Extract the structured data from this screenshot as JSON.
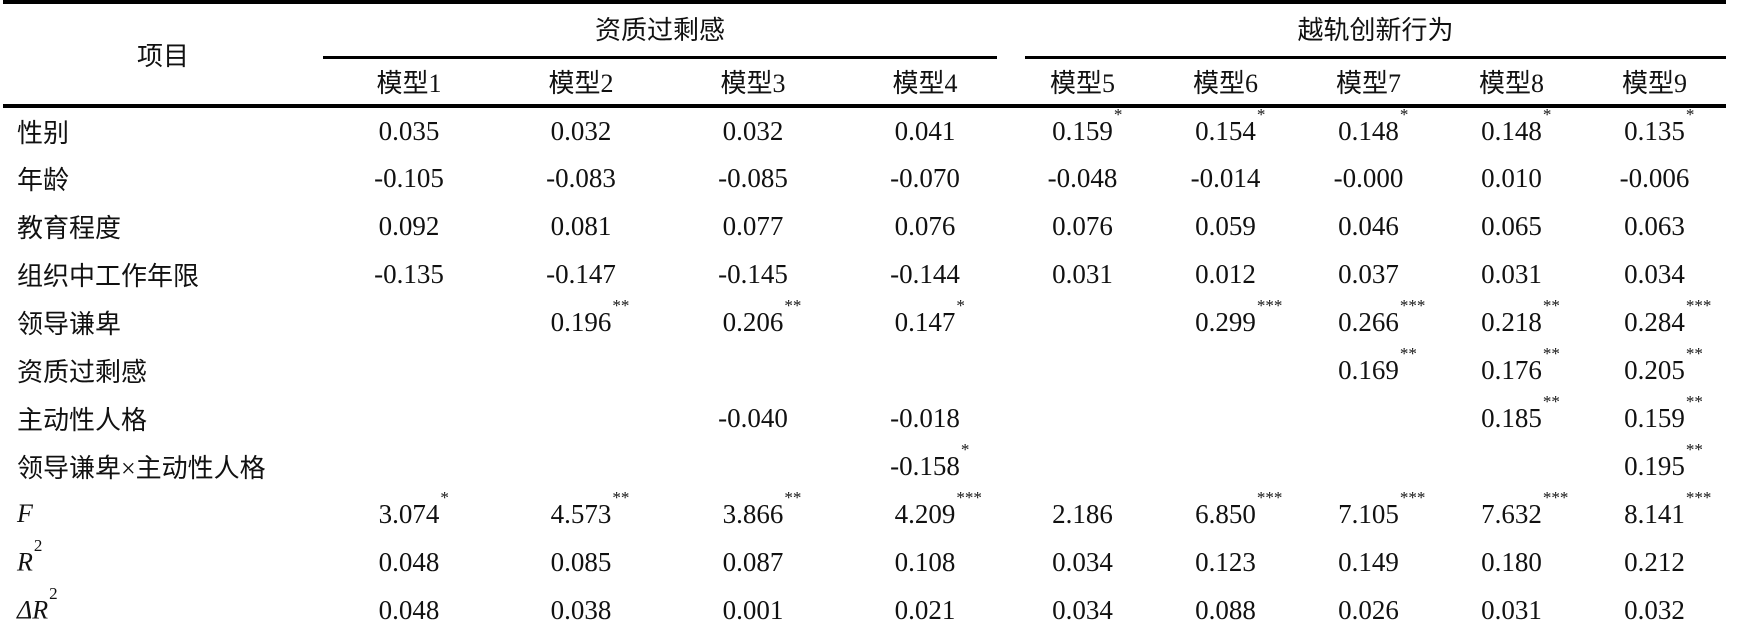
{
  "table": {
    "item_header": "项目",
    "groups": [
      {
        "label": "资质过剩感",
        "span": 4
      },
      {
        "label": "越轨创新行为",
        "span": 5
      }
    ],
    "model_headers": [
      "模型1",
      "模型2",
      "模型3",
      "模型4",
      "模型5",
      "模型6",
      "模型7",
      "模型8",
      "模型9"
    ],
    "rows": [
      {
        "label": "性别",
        "cells": [
          [
            "0.035",
            ""
          ],
          [
            "0.032",
            ""
          ],
          [
            "0.032",
            ""
          ],
          [
            "0.041",
            ""
          ],
          [
            "0.159",
            "*"
          ],
          [
            "0.154",
            "*"
          ],
          [
            "0.148",
            "*"
          ],
          [
            "0.148",
            "*"
          ],
          [
            "0.135",
            "*"
          ]
        ]
      },
      {
        "label": "年龄",
        "cells": [
          [
            "-0.105",
            ""
          ],
          [
            "-0.083",
            ""
          ],
          [
            "-0.085",
            ""
          ],
          [
            "-0.070",
            ""
          ],
          [
            "-0.048",
            ""
          ],
          [
            "-0.014",
            ""
          ],
          [
            "-0.000",
            ""
          ],
          [
            "0.010",
            ""
          ],
          [
            "-0.006",
            ""
          ]
        ]
      },
      {
        "label": "教育程度",
        "cells": [
          [
            "0.092",
            ""
          ],
          [
            "0.081",
            ""
          ],
          [
            "0.077",
            ""
          ],
          [
            "0.076",
            ""
          ],
          [
            "0.076",
            ""
          ],
          [
            "0.059",
            ""
          ],
          [
            "0.046",
            ""
          ],
          [
            "0.065",
            ""
          ],
          [
            "0.063",
            ""
          ]
        ]
      },
      {
        "label": "组织中工作年限",
        "cells": [
          [
            "-0.135",
            ""
          ],
          [
            "-0.147",
            ""
          ],
          [
            "-0.145",
            ""
          ],
          [
            "-0.144",
            ""
          ],
          [
            "0.031",
            ""
          ],
          [
            "0.012",
            ""
          ],
          [
            "0.037",
            ""
          ],
          [
            "0.031",
            ""
          ],
          [
            "0.034",
            ""
          ]
        ]
      },
      {
        "label": "领导谦卑",
        "cells": [
          [
            "",
            ""
          ],
          [
            "0.196",
            "**"
          ],
          [
            "0.206",
            "**"
          ],
          [
            "0.147",
            "*"
          ],
          [
            "",
            ""
          ],
          [
            "0.299",
            "***"
          ],
          [
            "0.266",
            "***"
          ],
          [
            "0.218",
            "**"
          ],
          [
            "0.284",
            "***"
          ]
        ]
      },
      {
        "label": "资质过剩感",
        "cells": [
          [
            "",
            ""
          ],
          [
            "",
            ""
          ],
          [
            "",
            ""
          ],
          [
            "",
            ""
          ],
          [
            "",
            ""
          ],
          [
            "",
            ""
          ],
          [
            "0.169",
            "**"
          ],
          [
            "0.176",
            "**"
          ],
          [
            "0.205",
            "**"
          ]
        ]
      },
      {
        "label": "主动性人格",
        "cells": [
          [
            "",
            ""
          ],
          [
            "",
            ""
          ],
          [
            "-0.040",
            ""
          ],
          [
            "-0.018",
            ""
          ],
          [
            "",
            ""
          ],
          [
            "",
            ""
          ],
          [
            "",
            ""
          ],
          [
            "0.185",
            "**"
          ],
          [
            "0.159",
            "**"
          ]
        ]
      },
      {
        "label": "领导谦卑×主动性人格",
        "cells": [
          [
            "",
            ""
          ],
          [
            "",
            ""
          ],
          [
            "",
            ""
          ],
          [
            "-0.158",
            "*"
          ],
          [
            "",
            ""
          ],
          [
            "",
            ""
          ],
          [
            "",
            ""
          ],
          [
            "",
            ""
          ],
          [
            "0.195",
            "**"
          ]
        ]
      },
      {
        "label": "F",
        "italic": true,
        "cells": [
          [
            "3.074",
            "*"
          ],
          [
            "4.573",
            "**"
          ],
          [
            "3.866",
            "**"
          ],
          [
            "4.209",
            "***"
          ],
          [
            "2.186",
            ""
          ],
          [
            "6.850",
            "***"
          ],
          [
            "7.105",
            "***"
          ],
          [
            "7.632",
            "***"
          ],
          [
            "8.141",
            "***"
          ]
        ]
      },
      {
        "label": "R",
        "sup": "2",
        "italic": true,
        "cells": [
          [
            "0.048",
            ""
          ],
          [
            "0.085",
            ""
          ],
          [
            "0.087",
            ""
          ],
          [
            "0.108",
            ""
          ],
          [
            "0.034",
            ""
          ],
          [
            "0.123",
            ""
          ],
          [
            "0.149",
            ""
          ],
          [
            "0.180",
            ""
          ],
          [
            "0.212",
            ""
          ]
        ]
      },
      {
        "label": "ΔR",
        "sup": "2",
        "italic": true,
        "cells": [
          [
            "0.048",
            ""
          ],
          [
            "0.038",
            ""
          ],
          [
            "0.001",
            ""
          ],
          [
            "0.021",
            ""
          ],
          [
            "0.034",
            ""
          ],
          [
            "0.088",
            ""
          ],
          [
            "0.026",
            ""
          ],
          [
            "0.031",
            ""
          ],
          [
            "0.032",
            ""
          ]
        ]
      }
    ]
  }
}
